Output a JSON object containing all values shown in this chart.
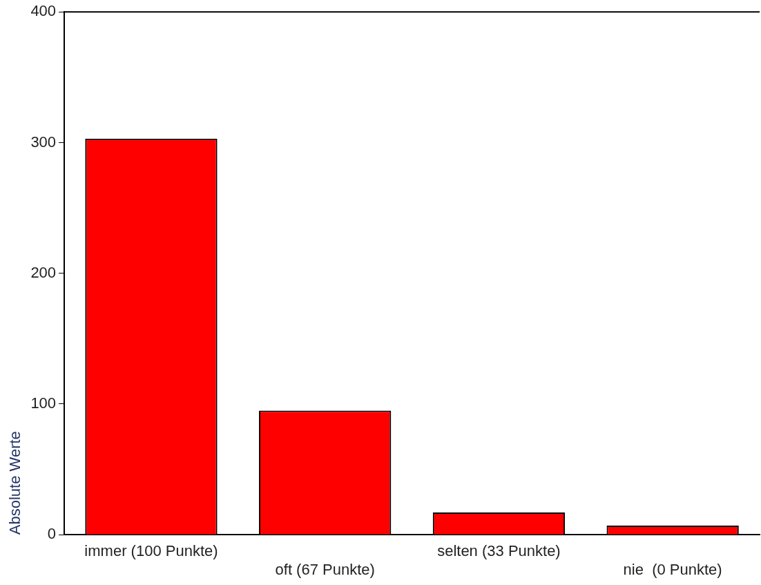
{
  "chart_data": {
    "type": "bar",
    "ylabel": "Absolute Werte",
    "categories": [
      "immer (100 Punkte)",
      "oft (67 Punkte)",
      "selten (33 Punkte)",
      "nie  (0 Punkte)"
    ],
    "values": [
      303,
      95,
      17,
      7
    ],
    "color": "#ff0000",
    "ylim": [
      0,
      400
    ],
    "yticks": [
      0,
      100,
      200,
      300,
      400
    ],
    "grid": false,
    "legend": false
  }
}
